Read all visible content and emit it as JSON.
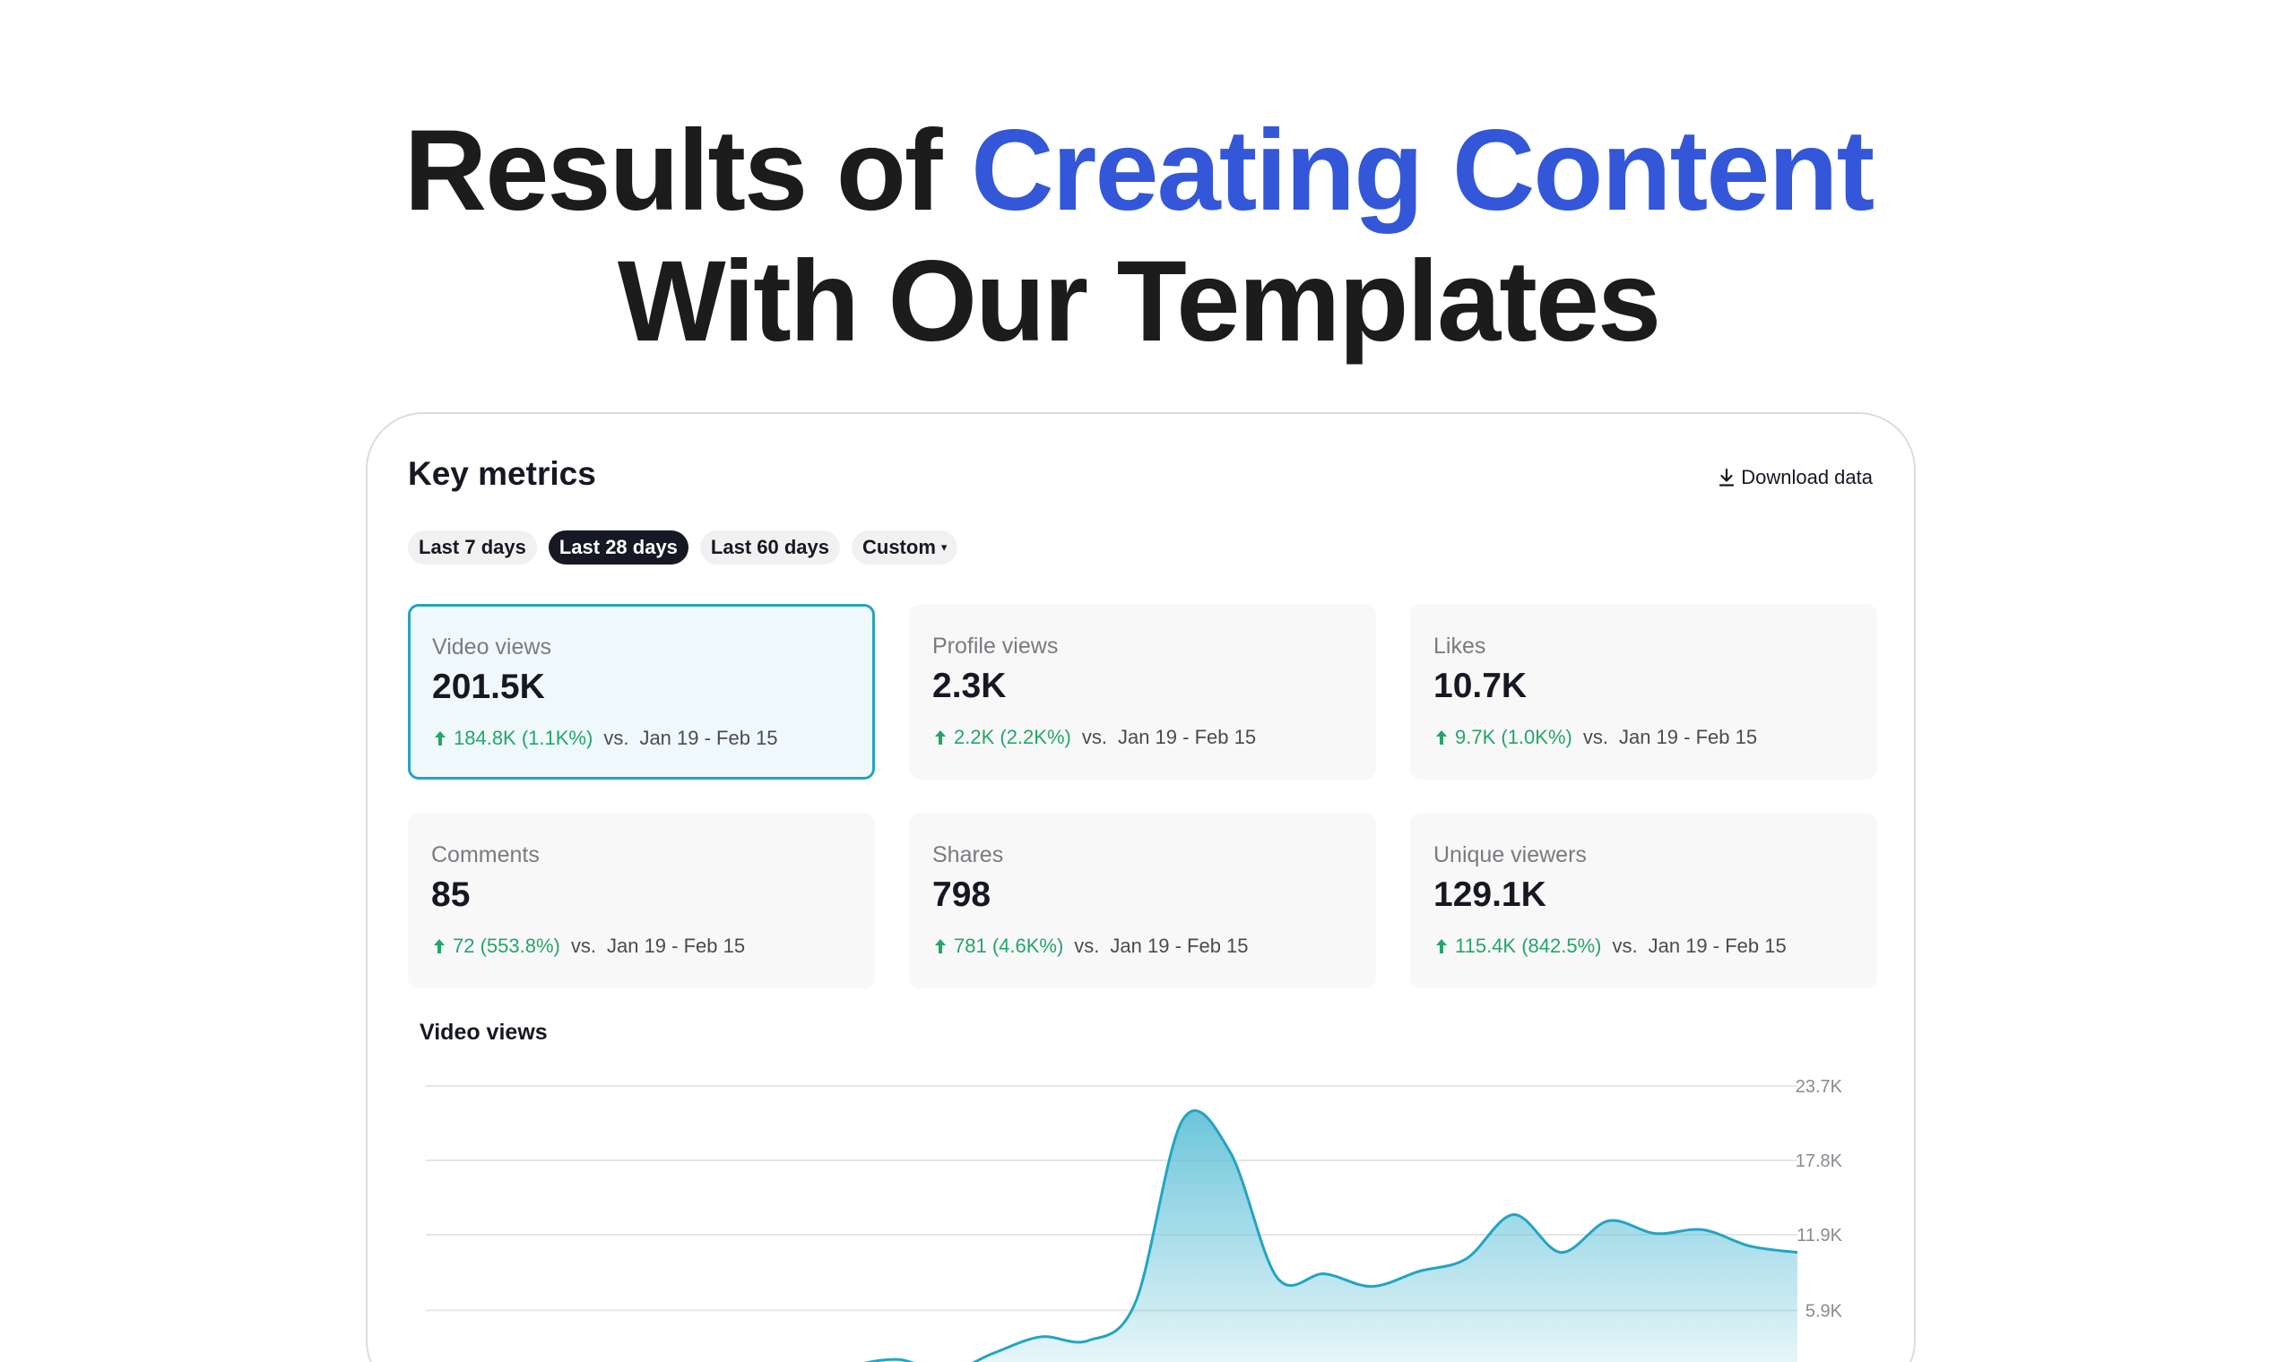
{
  "headline": {
    "line1_prefix": "Results of ",
    "line1_accent": "Creating Content",
    "line2": "With Our Templates"
  },
  "panel": {
    "title": "Key metrics",
    "download_label": "Download data",
    "download_icon": "download-icon",
    "date_ranges": [
      {
        "label": "Last 7 days",
        "active": false
      },
      {
        "label": "Last 28 days",
        "active": true
      },
      {
        "label": "Last 60 days",
        "active": false
      },
      {
        "label": "Custom",
        "active": false
      }
    ],
    "custom_caret": "▾"
  },
  "metrics": [
    {
      "label": "Video views",
      "value": "201.5K",
      "delta": "184.8K (1.1K%)",
      "vs": "vs.",
      "period": "Jan 19 - Feb 15",
      "selected": true
    },
    {
      "label": "Profile views",
      "value": "2.3K",
      "delta": "2.2K (2.2K%)",
      "vs": "vs.",
      "period": "Jan 19 - Feb 15",
      "selected": false
    },
    {
      "label": "Likes",
      "value": "10.7K",
      "delta": "9.7K (1.0K%)",
      "vs": "vs.",
      "period": "Jan 19 - Feb 15",
      "selected": false
    },
    {
      "label": "Comments",
      "value": "85",
      "delta": "72 (553.8%)",
      "vs": "vs.",
      "period": "Jan 19 - Feb 15",
      "selected": false
    },
    {
      "label": "Shares",
      "value": "798",
      "delta": "781 (4.6K%)",
      "vs": "vs.",
      "period": "Jan 19 - Feb 15",
      "selected": false
    },
    {
      "label": "Unique viewers",
      "value": "129.1K",
      "delta": "115.4K (842.5%)",
      "vs": "vs.",
      "period": "Jan 19 - Feb 15",
      "selected": false
    }
  ],
  "colors": {
    "accent": "#3357d8",
    "selected_border": "#23a4c1",
    "positive": "#25a56a",
    "series_line": "#23a4c1",
    "series_fill": "#5bbfd6"
  },
  "chart_data": {
    "type": "area",
    "title": "Video views",
    "y_ticks": [
      "23.7K",
      "17.8K",
      "11.9K",
      "5.9K"
    ],
    "ylim": [
      0,
      23.7
    ],
    "y_unit": "K",
    "grid": true,
    "series": [
      {
        "values": [
          0,
          0,
          0,
          0,
          0,
          0,
          0,
          0.3,
          0.5,
          1.5,
          2.0,
          1.0,
          2.5,
          3.8,
          3.5,
          6.5,
          21.0,
          18.5,
          8.5,
          8.8,
          7.8,
          9.0,
          10.0,
          13.5,
          10.5,
          13.0,
          12.0,
          12.3,
          11.0,
          10.5
        ]
      }
    ]
  }
}
